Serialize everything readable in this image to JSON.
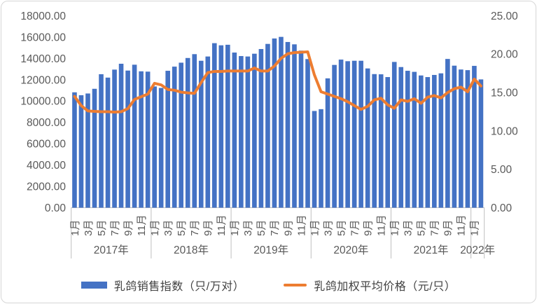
{
  "chart_data": {
    "type": "combo-bar-line",
    "title": "",
    "grid": false,
    "legend_position": "bottom",
    "categories": [
      "2017-01",
      "2017-02",
      "2017-03",
      "2017-04",
      "2017-05",
      "2017-06",
      "2017-07",
      "2017-08",
      "2017-09",
      "2017-10",
      "2017-11",
      "2017-12",
      "2018-01",
      "2018-02",
      "2018-03",
      "2018-04",
      "2018-05",
      "2018-06",
      "2018-07",
      "2018-08",
      "2018-09",
      "2018-10",
      "2018-11",
      "2018-12",
      "2019-01",
      "2019-02",
      "2019-03",
      "2019-04",
      "2019-05",
      "2019-06",
      "2019-07",
      "2019-08",
      "2019-09",
      "2019-10",
      "2019-11",
      "2019-12",
      "2020-01",
      "2020-02",
      "2020-03",
      "2020-04",
      "2020-05",
      "2020-06",
      "2020-07",
      "2020-08",
      "2020-09",
      "2020-10",
      "2020-11",
      "2020-12",
      "2021-01",
      "2021-02",
      "2021-03",
      "2021-04",
      "2021-05",
      "2021-06",
      "2021-07",
      "2021-08",
      "2021-09",
      "2021-10",
      "2021-11",
      "2021-12",
      "2022-01",
      "2022-02"
    ],
    "series": [
      {
        "name": "乳鸽销售指数（只/万对）",
        "type": "bar",
        "axis": "left",
        "color": "#4472C4",
        "values": [
          10820,
          10550,
          10710,
          11150,
          12520,
          12200,
          12950,
          13500,
          12860,
          13410,
          12790,
          12760,
          11370,
          11230,
          12840,
          13230,
          13600,
          14040,
          14400,
          13780,
          14180,
          15430,
          15230,
          15280,
          14550,
          14220,
          14180,
          14440,
          14880,
          15360,
          15870,
          16020,
          15540,
          15320,
          14730,
          13940,
          9070,
          9240,
          12130,
          13390,
          13890,
          13740,
          13780,
          13780,
          13060,
          12530,
          12510,
          12250,
          13670,
          13190,
          12840,
          12740,
          12400,
          12250,
          12450,
          12600,
          13950,
          13320,
          12960,
          12900,
          13300,
          12030
        ]
      },
      {
        "name": "乳鸽加权平均价格（元/只）",
        "type": "line",
        "axis": "right",
        "color": "#ED7D31",
        "values": [
          14.5,
          13.3,
          12.6,
          12.55,
          12.5,
          12.5,
          12.45,
          12.5,
          12.9,
          14.1,
          14.45,
          14.8,
          16.2,
          16.0,
          15.4,
          15.3,
          15.05,
          14.95,
          14.9,
          16.3,
          17.6,
          17.75,
          17.75,
          17.8,
          17.8,
          17.8,
          17.8,
          18.2,
          17.8,
          17.8,
          18.45,
          19.45,
          20.05,
          20.2,
          20.25,
          20.3,
          17.3,
          15.1,
          14.8,
          14.5,
          14.2,
          13.8,
          13.3,
          12.8,
          13.2,
          14.05,
          14.25,
          13.4,
          12.95,
          14.05,
          13.85,
          14.2,
          13.6,
          14.4,
          14.6,
          14.3,
          15.0,
          15.5,
          15.7,
          15.1,
          16.75,
          15.85
        ]
      }
    ],
    "axes": {
      "left": {
        "min": 0,
        "max": 18000,
        "step": 2000,
        "labels": [
          "18000.00",
          "16000.00",
          "14000.00",
          "12000.00",
          "10000.00",
          "8000.00",
          "6000.00",
          "4000.00",
          "2000.00",
          "0.00"
        ]
      },
      "right": {
        "min": 0,
        "max": 25,
        "step": 5,
        "labels": [
          "25.00",
          "20.00",
          "15.00",
          "10.00",
          "5.00",
          "0.00"
        ]
      }
    },
    "x_axis": {
      "month_labels": [
        "1月",
        "3月",
        "5月",
        "7月",
        "9月",
        "11月"
      ],
      "years": [
        {
          "label": "2017年",
          "months": 12
        },
        {
          "label": "2018年",
          "months": 12
        },
        {
          "label": "2019年",
          "months": 12
        },
        {
          "label": "2020年",
          "months": 12
        },
        {
          "label": "2021年",
          "months": 12
        },
        {
          "label": "2022年",
          "months": 2
        }
      ]
    },
    "colors": {
      "bar": "#4472C4",
      "line": "#ED7D31",
      "axis_text": "#595959",
      "axis_line": "#BFBFBF"
    }
  },
  "legend": {
    "items": [
      {
        "label": "乳鸽销售指数（只/万对）"
      },
      {
        "label": "乳鸽加权平均价格（元/只）"
      }
    ]
  }
}
